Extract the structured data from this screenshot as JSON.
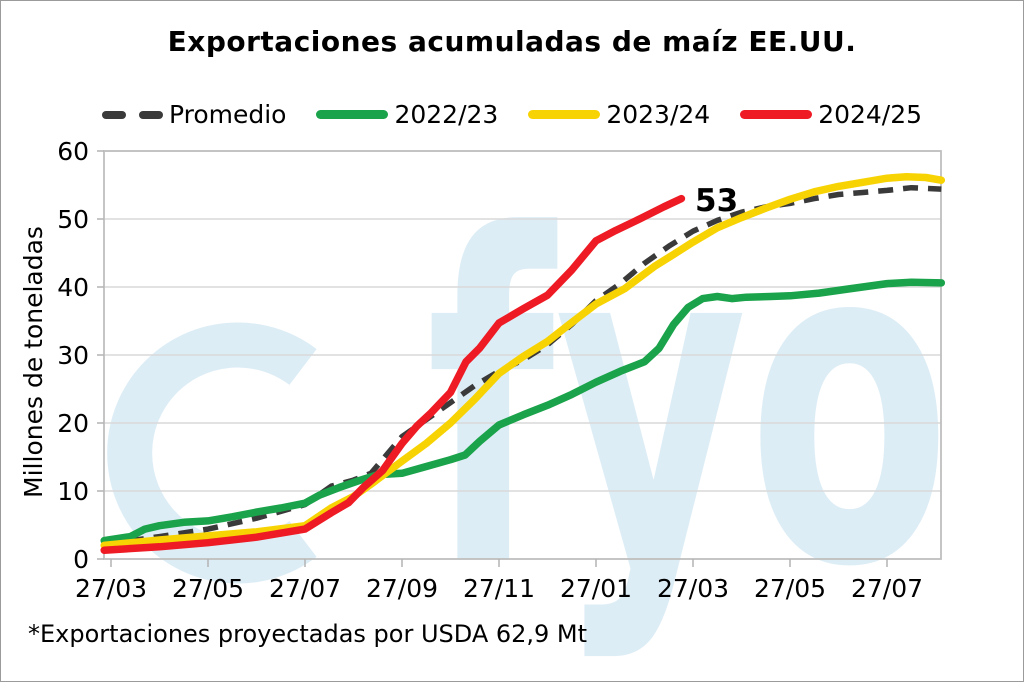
{
  "title": "Exportaciones acumuladas de maíz EE.UU.",
  "footnote": "*Exportaciones proyectadas por USDA 62,9 Mt",
  "watermark": {
    "text": "fyo",
    "color": "#ddedf6"
  },
  "annotation": {
    "label": "53",
    "series": "2024/25",
    "value": 53
  },
  "legend": {
    "items": [
      {
        "label": "Promedio",
        "color": "#3a3a3a",
        "style": "dashed"
      },
      {
        "label": "2022/23",
        "color": "#1aa34a",
        "style": "solid"
      },
      {
        "label": "2023/24",
        "color": "#f8d303",
        "style": "solid"
      },
      {
        "label": "2024/25",
        "color": "#ee1b24",
        "style": "solid"
      }
    ]
  },
  "chart_data": {
    "type": "line",
    "title": "Exportaciones acumuladas de maíz EE.UU.",
    "xlabel": "",
    "ylabel": "Millones de toneladas",
    "ylim": [
      0,
      60
    ],
    "yticks": [
      0,
      10,
      20,
      30,
      40,
      50,
      60
    ],
    "x_tick_labels": [
      "27/03",
      "27/05",
      "27/07",
      "27/09",
      "27/11",
      "27/01",
      "27/03",
      "27/05",
      "27/07"
    ],
    "x_unit": "tick index, ticks spaced ~2 months, weekly cumulative data",
    "xlim": [
      -0.07,
      8.56
    ],
    "grid": true,
    "legend_position": "top",
    "series": [
      {
        "name": "Promedio",
        "color": "#3a3a3a",
        "style": "dashed",
        "points": [
          [
            -0.07,
            2.2
          ],
          [
            0,
            2.3
          ],
          [
            0.5,
            3.3
          ],
          [
            1,
            4.4
          ],
          [
            1.5,
            6.0
          ],
          [
            2,
            8.0
          ],
          [
            2.27,
            10.7
          ],
          [
            2.5,
            11.6
          ],
          [
            2.68,
            12.6
          ],
          [
            3,
            18.0
          ],
          [
            3.25,
            20.5
          ],
          [
            3.5,
            23.0
          ],
          [
            3.75,
            25.5
          ],
          [
            4,
            27.6
          ],
          [
            4.25,
            29.3
          ],
          [
            4.5,
            31.5
          ],
          [
            4.75,
            34.5
          ],
          [
            5,
            38.0
          ],
          [
            5.25,
            40.5
          ],
          [
            5.5,
            43.5
          ],
          [
            5.75,
            46.0
          ],
          [
            6,
            48.2
          ],
          [
            6.25,
            49.8
          ],
          [
            6.5,
            51.0
          ],
          [
            6.75,
            51.8
          ],
          [
            7,
            52.3
          ],
          [
            7.25,
            53.0
          ],
          [
            7.5,
            53.6
          ],
          [
            7.75,
            53.9
          ],
          [
            8,
            54.2
          ],
          [
            8.25,
            54.6
          ],
          [
            8.56,
            54.4
          ]
        ]
      },
      {
        "name": "2022/23",
        "color": "#1aa34a",
        "style": "solid",
        "points": [
          [
            -0.07,
            2.7
          ],
          [
            0.2,
            3.3
          ],
          [
            0.35,
            4.4
          ],
          [
            0.5,
            4.9
          ],
          [
            0.75,
            5.4
          ],
          [
            1,
            5.6
          ],
          [
            1.25,
            6.2
          ],
          [
            1.5,
            6.9
          ],
          [
            1.75,
            7.5
          ],
          [
            2,
            8.2
          ],
          [
            2.15,
            9.4
          ],
          [
            2.35,
            10.5
          ],
          [
            2.55,
            11.5
          ],
          [
            2.75,
            12.4
          ],
          [
            3,
            12.6
          ],
          [
            3.25,
            13.6
          ],
          [
            3.5,
            14.6
          ],
          [
            3.65,
            15.3
          ],
          [
            3.8,
            17.3
          ],
          [
            4,
            19.7
          ],
          [
            4.25,
            21.2
          ],
          [
            4.5,
            22.6
          ],
          [
            4.75,
            24.2
          ],
          [
            5,
            26.0
          ],
          [
            5.25,
            27.6
          ],
          [
            5.5,
            29.0
          ],
          [
            5.65,
            31.0
          ],
          [
            5.8,
            34.5
          ],
          [
            5.95,
            37.0
          ],
          [
            6.1,
            38.3
          ],
          [
            6.25,
            38.6
          ],
          [
            6.4,
            38.3
          ],
          [
            6.55,
            38.5
          ],
          [
            6.8,
            38.6
          ],
          [
            7,
            38.7
          ],
          [
            7.3,
            39.1
          ],
          [
            7.6,
            39.7
          ],
          [
            8,
            40.5
          ],
          [
            8.25,
            40.7
          ],
          [
            8.56,
            40.6
          ]
        ]
      },
      {
        "name": "2023/24",
        "color": "#f8d303",
        "style": "solid",
        "points": [
          [
            -0.07,
            2.0
          ],
          [
            0.5,
            2.8
          ],
          [
            1,
            3.4
          ],
          [
            1.5,
            4.0
          ],
          [
            2,
            4.9
          ],
          [
            2.27,
            7.5
          ],
          [
            2.5,
            9.2
          ],
          [
            2.68,
            11.0
          ],
          [
            3,
            14.4
          ],
          [
            3.25,
            17.0
          ],
          [
            3.5,
            20.0
          ],
          [
            3.75,
            23.5
          ],
          [
            4,
            27.3
          ],
          [
            4.25,
            29.8
          ],
          [
            4.5,
            32.0
          ],
          [
            4.75,
            34.8
          ],
          [
            5,
            37.5
          ],
          [
            5.3,
            39.8
          ],
          [
            5.6,
            43.0
          ],
          [
            5.8,
            44.8
          ],
          [
            6,
            46.6
          ],
          [
            6.25,
            48.7
          ],
          [
            6.5,
            50.2
          ],
          [
            6.75,
            51.6
          ],
          [
            7,
            52.9
          ],
          [
            7.25,
            54.0
          ],
          [
            7.5,
            54.8
          ],
          [
            7.75,
            55.4
          ],
          [
            8,
            56.0
          ],
          [
            8.2,
            56.2
          ],
          [
            8.4,
            56.1
          ],
          [
            8.56,
            55.7
          ]
        ]
      },
      {
        "name": "2024/25",
        "color": "#ee1b24",
        "style": "solid",
        "points": [
          [
            -0.07,
            1.3
          ],
          [
            0.5,
            1.8
          ],
          [
            1,
            2.4
          ],
          [
            1.5,
            3.2
          ],
          [
            2,
            4.4
          ],
          [
            2.27,
            6.8
          ],
          [
            2.45,
            8.3
          ],
          [
            2.6,
            10.5
          ],
          [
            2.8,
            13.0
          ],
          [
            3,
            17.0
          ],
          [
            3.15,
            19.5
          ],
          [
            3.3,
            21.5
          ],
          [
            3.5,
            24.5
          ],
          [
            3.66,
            29.0
          ],
          [
            3.8,
            31.0
          ],
          [
            4,
            34.7
          ],
          [
            4.25,
            36.8
          ],
          [
            4.5,
            38.8
          ],
          [
            4.75,
            42.5
          ],
          [
            5,
            46.8
          ],
          [
            5.2,
            48.3
          ],
          [
            5.45,
            50.0
          ],
          [
            5.7,
            51.8
          ],
          [
            5.88,
            53.0
          ]
        ]
      }
    ]
  }
}
